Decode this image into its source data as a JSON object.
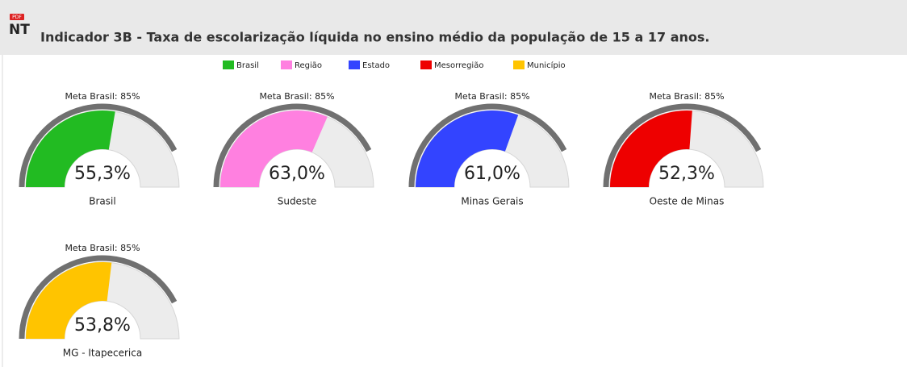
{
  "header": {
    "icon_badge": "PDF",
    "icon": "NT",
    "title": "Indicador 3B - Taxa de escolarização líquida no ensino médio da população de 15 a 17 anos."
  },
  "legend": [
    {
      "name": "Brasil",
      "color": "#22bb22"
    },
    {
      "name": "Região",
      "color": "#ff80e0"
    },
    {
      "name": "Estado",
      "color": "#3344ff"
    },
    {
      "name": "Mesorregião",
      "color": "#ee0000"
    },
    {
      "name": "Município",
      "color": "#ffc400"
    }
  ],
  "chart_data": [
    {
      "type": "gauge",
      "title": "Meta Brasil: 85%",
      "target": 85,
      "ylim": [
        0,
        100
      ],
      "name": "Brasil",
      "values": [
        55.3
      ],
      "value_labels": [
        "55,3%"
      ],
      "color": "#22bb22"
    },
    {
      "type": "gauge",
      "title": "Meta Brasil: 85%",
      "target": 85,
      "ylim": [
        0,
        100
      ],
      "name": "Sudeste",
      "values": [
        63.0
      ],
      "value_labels": [
        "63,0%"
      ],
      "color": "#ff80e0"
    },
    {
      "type": "gauge",
      "title": "Meta Brasil: 85%",
      "target": 85,
      "ylim": [
        0,
        100
      ],
      "name": "Minas Gerais",
      "values": [
        61.0
      ],
      "value_labels": [
        "61,0%"
      ],
      "color": "#3344ff"
    },
    {
      "type": "gauge",
      "title": "Meta Brasil: 85%",
      "target": 85,
      "ylim": [
        0,
        100
      ],
      "name": "Oeste de Minas",
      "values": [
        52.3
      ],
      "value_labels": [
        "52,3%"
      ],
      "color": "#ee0000"
    },
    {
      "type": "gauge",
      "title": "Meta Brasil: 85%",
      "target": 85,
      "ylim": [
        0,
        100
      ],
      "name": "MG - Itapecerica",
      "values": [
        53.8
      ],
      "value_labels": [
        "53,8%"
      ],
      "color": "#ffc400"
    }
  ]
}
